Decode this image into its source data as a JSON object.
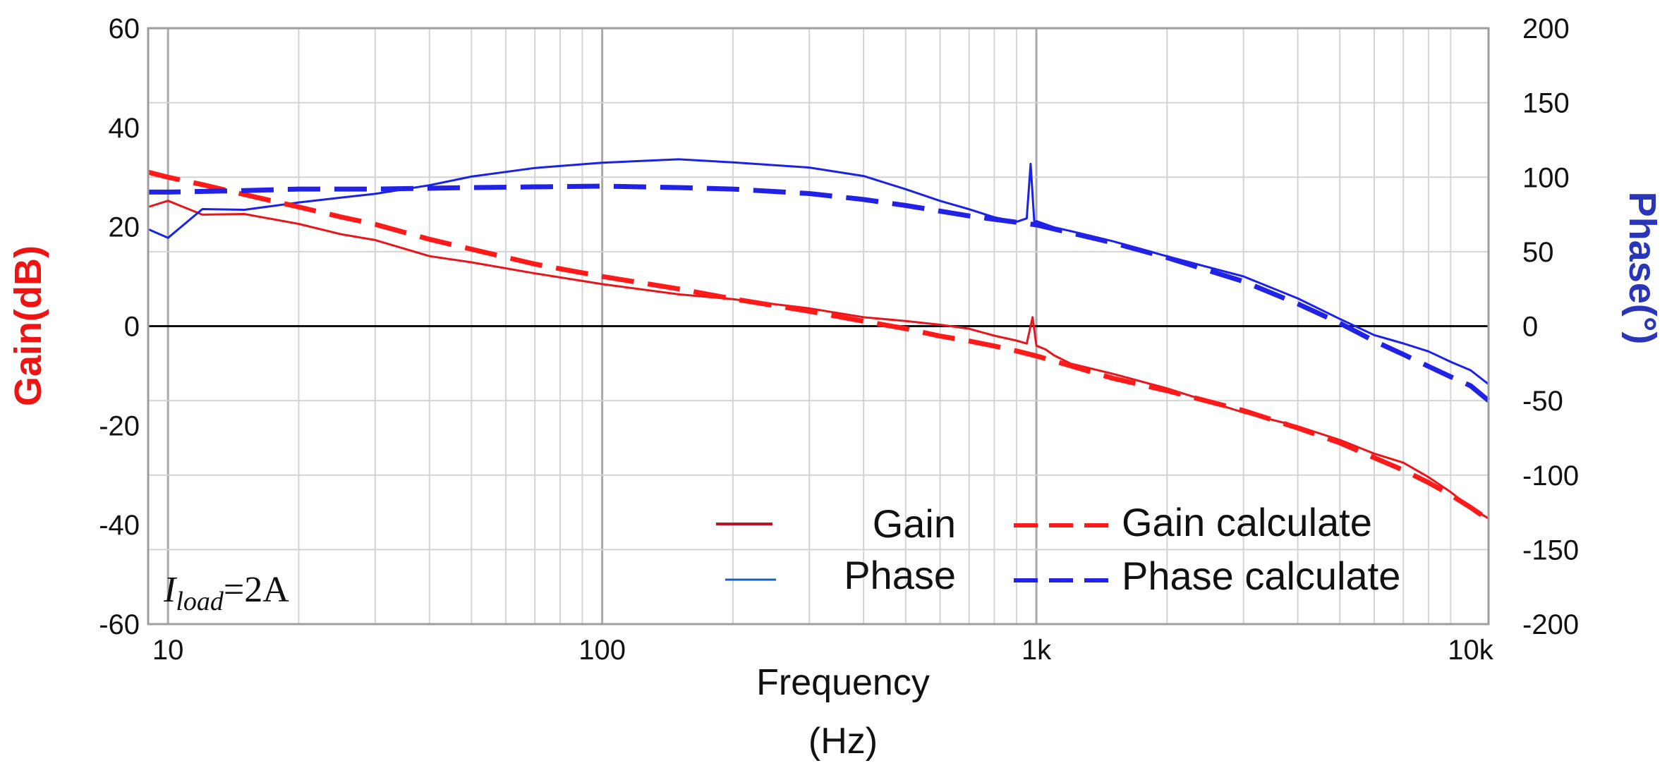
{
  "chart_data": {
    "type": "line",
    "xlabel_line1": "Frequency",
    "xlabel_line2": "(Hz)",
    "ylabel_left": "Gain(dB)",
    "ylabel_right": "Phase(°)",
    "xscale": "log",
    "xlim": [
      9,
      11000
    ],
    "ylim_left": [
      -60,
      60
    ],
    "ylim_right": [
      -200,
      200
    ],
    "grid": true,
    "x_ticks": [
      {
        "value": 10,
        "label": "10"
      },
      {
        "value": 100,
        "label": "100"
      },
      {
        "value": 1000,
        "label": "1k"
      },
      {
        "value": 10000,
        "label": "10k"
      }
    ],
    "y_left_ticks": [
      {
        "value": 60,
        "label": "60"
      },
      {
        "value": 40,
        "label": "40"
      },
      {
        "value": 20,
        "label": "20"
      },
      {
        "value": 0,
        "label": "0"
      },
      {
        "value": -20,
        "label": "-20"
      },
      {
        "value": -40,
        "label": "-40"
      },
      {
        "value": -60,
        "label": "-60"
      }
    ],
    "y_right_ticks": [
      {
        "value": 200,
        "label": "200"
      },
      {
        "value": 150,
        "label": "150"
      },
      {
        "value": 100,
        "label": "100"
      },
      {
        "value": 50,
        "label": "50"
      },
      {
        "value": 0,
        "label": "0"
      },
      {
        "value": -50,
        "label": "-50"
      },
      {
        "value": -100,
        "label": "-100"
      },
      {
        "value": -150,
        "label": "-150"
      },
      {
        "value": -200,
        "label": "-200"
      }
    ],
    "annotation": {
      "italic": "I",
      "subscript": "load",
      "text": "=2A"
    },
    "legend_position": "bottom-right",
    "series": [
      {
        "name": "Gain",
        "axis": "left",
        "style": "solid",
        "color": "#e8161b",
        "x": [
          9,
          10,
          12,
          15,
          20,
          25,
          30,
          40,
          50,
          70,
          100,
          150,
          200,
          300,
          400,
          500,
          600,
          700,
          800,
          900,
          950,
          980,
          1000,
          1050,
          1100,
          1200,
          1500,
          2000,
          3000,
          4000,
          5000,
          6000,
          7000,
          8000,
          9000,
          10000,
          11000
        ],
        "y": [
          24,
          25,
          22,
          22,
          20,
          18,
          17,
          14,
          13,
          11,
          9,
          7,
          6,
          4,
          2,
          1,
          0,
          -1,
          -2.5,
          -3.5,
          -4,
          1.5,
          -4,
          -4.5,
          -5.5,
          -7,
          -9,
          -12,
          -17,
          -20,
          -23,
          -26,
          -28,
          -31,
          -34,
          -37,
          -39
        ]
      },
      {
        "name": "Phase",
        "axis": "right",
        "style": "solid",
        "color": "#1a22e8",
        "x": [
          9,
          10,
          12,
          15,
          20,
          25,
          30,
          40,
          50,
          70,
          100,
          150,
          200,
          300,
          400,
          500,
          600,
          700,
          800,
          900,
          950,
          970,
          990,
          1000,
          1100,
          1200,
          1500,
          2000,
          3000,
          4000,
          5000,
          6000,
          7000,
          8000,
          9000,
          10000,
          11000
        ],
        "y": [
          65,
          60,
          80,
          80,
          85,
          88,
          90,
          95,
          100,
          105,
          108,
          110,
          108,
          105,
          100,
          92,
          85,
          80,
          75,
          72,
          74,
          110,
          68,
          70,
          65,
          62,
          55,
          45,
          32,
          18,
          5,
          -5,
          -10,
          -15,
          -22,
          -28,
          -38
        ]
      },
      {
        "name": "Gain calculate",
        "axis": "left",
        "style": "dashed",
        "color": "#ff1a1a",
        "x": [
          9,
          10,
          12,
          15,
          20,
          25,
          30,
          40,
          50,
          70,
          100,
          150,
          200,
          300,
          400,
          500,
          600,
          700,
          800,
          900,
          1000,
          1200,
          1500,
          2000,
          3000,
          4000,
          5000,
          6000,
          7000,
          8000,
          9000,
          10000,
          11000
        ],
        "y": [
          31,
          30,
          28.5,
          26.5,
          24,
          22,
          20.5,
          17.5,
          15.5,
          12.5,
          10,
          7.5,
          5.5,
          3,
          1,
          -0.5,
          -2,
          -3,
          -4,
          -5,
          -6,
          -8,
          -10.5,
          -13,
          -17,
          -20.5,
          -23.5,
          -26.5,
          -29,
          -31.5,
          -34,
          -36.5,
          -39
        ]
      },
      {
        "name": "Phase calculate",
        "axis": "right",
        "style": "dashed",
        "color": "#2222e6",
        "x": [
          9,
          10,
          15,
          20,
          30,
          50,
          100,
          150,
          200,
          300,
          400,
          500,
          700,
          1000,
          1500,
          2000,
          3000,
          4000,
          5000,
          6000,
          7000,
          8000,
          9000,
          10000,
          11000
        ],
        "y": [
          90,
          90,
          91,
          92,
          92,
          93,
          94,
          93,
          92,
          89,
          85,
          81,
          74,
          68,
          56,
          46,
          30,
          15,
          2,
          -10,
          -19,
          -27,
          -34,
          -40,
          -50
        ]
      }
    ]
  }
}
